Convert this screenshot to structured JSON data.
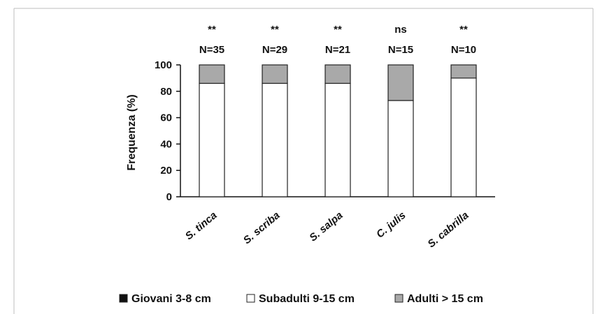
{
  "chart_data": {
    "type": "bar",
    "stacked": true,
    "categories": [
      "S. tinca",
      "S. scriba",
      "S. salpa",
      "C. julis",
      "S. cabrilla"
    ],
    "significance": [
      "**",
      "**",
      "**",
      "ns",
      "**"
    ],
    "sample_sizes": [
      "N=35",
      "N=29",
      "N=21",
      "N=15",
      "N=10"
    ],
    "series": [
      {
        "name": "Giovani 3-8 cm",
        "values": [
          0,
          0,
          0,
          0,
          0
        ],
        "color": "#111111"
      },
      {
        "name": "Subadulti 9-15 cm",
        "values": [
          86,
          86,
          86,
          73,
          90
        ],
        "color": "#ffffff"
      },
      {
        "name": "Adulti > 15 cm",
        "values": [
          14,
          14,
          14,
          27,
          10
        ],
        "color": "#a9a9a9"
      }
    ],
    "ylabel": "Frequenza (%)",
    "xlabel": "",
    "ylim": [
      0,
      100
    ],
    "yticks": [
      0,
      20,
      40,
      60,
      80,
      100
    ],
    "grid": false,
    "legend_position": "bottom"
  },
  "colors": {
    "frame_border": "#bdbdbd",
    "axis": "#111111",
    "bar_edge": "#222222"
  }
}
